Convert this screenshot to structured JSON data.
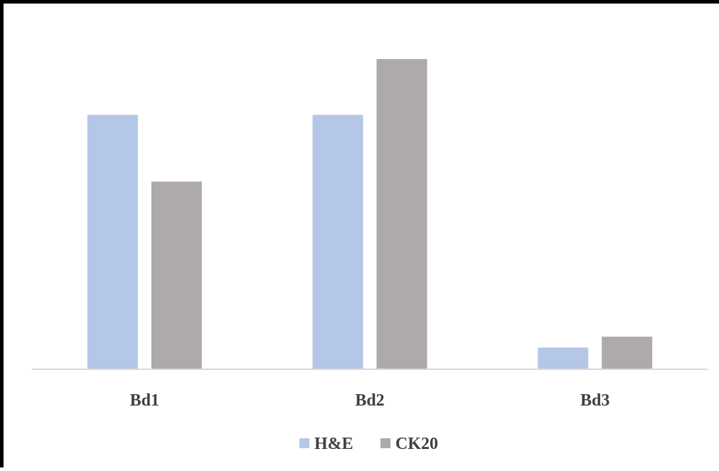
{
  "chart_data": {
    "type": "bar",
    "categories": [
      "Bd1",
      "Bd2",
      "Bd3"
    ],
    "series": [
      {
        "name": "H&E",
        "color": "#b4c7e7",
        "values": [
          0.82,
          0.82,
          0.07
        ]
      },
      {
        "name": "CK20",
        "color": "#aeaaaa",
        "values": [
          0.605,
          1.0,
          0.105
        ]
      }
    ],
    "title": "",
    "xlabel": "",
    "ylabel": "",
    "ylim": [
      0,
      1.0
    ],
    "grid": false,
    "legend": "bottom-center"
  }
}
